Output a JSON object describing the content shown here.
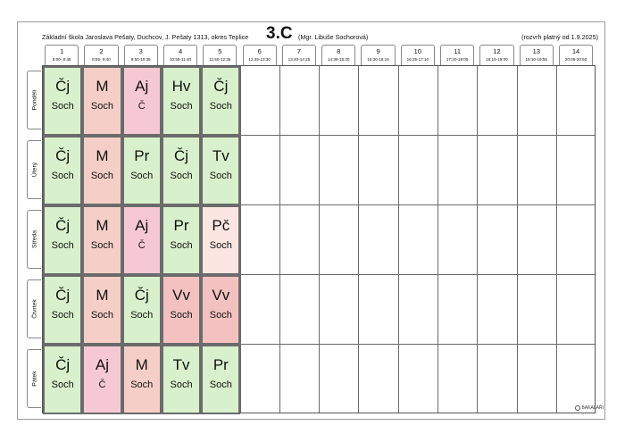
{
  "header": {
    "school": "Základní škola Jaroslava Pešaty, Duchcov, J. Pešaty 1313, okres Teplice",
    "class_name": "3.C",
    "teacher": "(Mgr. Libuše Sochorová)",
    "validity": "(rozvrh platný od 1.9.2025)"
  },
  "periods": [
    {
      "num": "1",
      "time": "8:00- 8:45"
    },
    {
      "num": "2",
      "time": "8:55- 9:40"
    },
    {
      "num": "3",
      "time": "9:50-10:35"
    },
    {
      "num": "4",
      "time": "10:55-11:40"
    },
    {
      "num": "5",
      "time": "11:50-12:35"
    },
    {
      "num": "6",
      "time": "12:45-13:30"
    },
    {
      "num": "7",
      "time": "13:40-14:25"
    },
    {
      "num": "8",
      "time": "14:35-15:20"
    },
    {
      "num": "9",
      "time": "15:30-16:15"
    },
    {
      "num": "10",
      "time": "16:25-17:10"
    },
    {
      "num": "11",
      "time": "17:20-18:05"
    },
    {
      "num": "12",
      "time": "18:15-19:00"
    },
    {
      "num": "13",
      "time": "19:10-19:55"
    },
    {
      "num": "14",
      "time": "20:05-20:50"
    }
  ],
  "days": [
    {
      "name": "Pondělí",
      "lessons": [
        {
          "subject": "Čj",
          "teacher": "Soch",
          "color": "#d8f0cc"
        },
        {
          "subject": "M",
          "teacher": "Soch",
          "color": "#f5cfc7"
        },
        {
          "subject": "Aj",
          "teacher": "Č",
          "color": "#f6c8d6"
        },
        {
          "subject": "Hv",
          "teacher": "Soch",
          "color": "#d8f0cc"
        },
        {
          "subject": "Čj",
          "teacher": "Soch",
          "color": "#d8f0cc"
        }
      ]
    },
    {
      "name": "Úterý",
      "lessons": [
        {
          "subject": "Čj",
          "teacher": "Soch",
          "color": "#d8f0cc"
        },
        {
          "subject": "M",
          "teacher": "Soch",
          "color": "#f5cfc7"
        },
        {
          "subject": "Pr",
          "teacher": "Soch",
          "color": "#d8f0cc"
        },
        {
          "subject": "Čj",
          "teacher": "Soch",
          "color": "#d8f0cc"
        },
        {
          "subject": "Tv",
          "teacher": "Soch",
          "color": "#d8f0cc"
        }
      ]
    },
    {
      "name": "Středa",
      "lessons": [
        {
          "subject": "Čj",
          "teacher": "Soch",
          "color": "#d8f0cc"
        },
        {
          "subject": "M",
          "teacher": "Soch",
          "color": "#f5cfc7"
        },
        {
          "subject": "Aj",
          "teacher": "Č",
          "color": "#f6c8d6"
        },
        {
          "subject": "Pr",
          "teacher": "Soch",
          "color": "#d8f0cc"
        },
        {
          "subject": "Pč",
          "teacher": "Soch",
          "color": "#fbe6e2"
        }
      ]
    },
    {
      "name": "Čtvrtek",
      "lessons": [
        {
          "subject": "Čj",
          "teacher": "Soch",
          "color": "#d8f0cc"
        },
        {
          "subject": "M",
          "teacher": "Soch",
          "color": "#f5cfc7"
        },
        {
          "subject": "Čj",
          "teacher": "Soch",
          "color": "#d8f0cc"
        },
        {
          "subject": "Vv",
          "teacher": "Soch",
          "color": "#f3c2c0"
        },
        {
          "subject": "Vv",
          "teacher": "Soch",
          "color": "#f3c2c0"
        }
      ]
    },
    {
      "name": "Pátek",
      "lessons": [
        {
          "subject": "Čj",
          "teacher": "Soch",
          "color": "#d8f0cc"
        },
        {
          "subject": "Aj",
          "teacher": "Č",
          "color": "#f6c8d6"
        },
        {
          "subject": "M",
          "teacher": "Soch",
          "color": "#f5cfc7"
        },
        {
          "subject": "Tv",
          "teacher": "Soch",
          "color": "#d8f0cc"
        },
        {
          "subject": "Pr",
          "teacher": "Soch",
          "color": "#d8f0cc"
        }
      ]
    }
  ],
  "footer": {
    "logo_icon": "bakalari-logo-icon",
    "logo_text": "BAKALÁŘI"
  }
}
